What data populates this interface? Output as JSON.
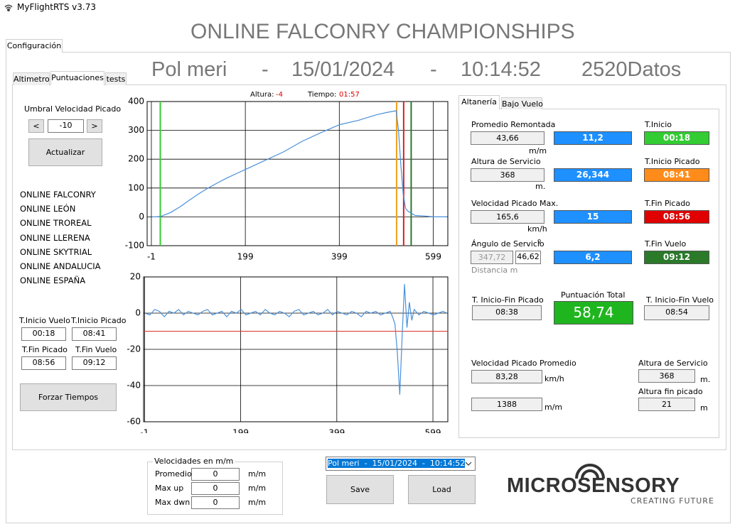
{
  "window": {
    "title": "MyFlightRTS v3.73"
  },
  "main_tab": "Configuración",
  "header": {
    "title": "ONLINE FALCONRY CHAMPIONSHIPS",
    "name": "Pol meri",
    "separator": "-",
    "date": "15/01/2024",
    "time": "10:14:52",
    "count": "2520Datos"
  },
  "sub_tabs": [
    "Altimetro",
    "Puntuaciones",
    "tests"
  ],
  "threshold": {
    "label": "Umbral Velocidad Picado",
    "prev": "<",
    "value": "-10",
    "next": ">",
    "update": "Actualizar"
  },
  "teams": [
    "ONLINE FALCONRY",
    "ONLINE LEÓN",
    "ONLINE TROREAL",
    "ONLINE LLERENA",
    "ONLINE SKYTRIAL",
    "ONLINE ANDALUCIA",
    "ONLINE ESPAÑA"
  ],
  "times": {
    "fields": [
      {
        "label": "T.Inicio Vuelo",
        "value": "00:18"
      },
      {
        "label": "T.Inicio Picado",
        "value": "08:41"
      },
      {
        "label": "T.Fin Picado",
        "value": "08:56"
      },
      {
        "label": "T.Fin Vuelo",
        "value": "09:12"
      }
    ],
    "button": "Forzar Tiempos"
  },
  "chart_status": {
    "altura_label": "Altura:",
    "altura": "-4",
    "tiempo_label": "Tiempo:",
    "tiempo": "01:57"
  },
  "chart_data": [
    {
      "type": "line",
      "x": [
        0,
        10,
        20,
        40,
        60,
        80,
        100,
        120,
        140,
        160,
        180,
        200,
        240,
        280,
        320,
        360,
        400,
        440,
        480,
        500,
        520,
        525,
        530,
        535,
        540,
        545,
        550,
        560,
        580,
        600,
        620,
        628
      ],
      "values": [
        0,
        0,
        2,
        15,
        35,
        58,
        80,
        100,
        118,
        135,
        150,
        165,
        195,
        225,
        262,
        292,
        320,
        335,
        355,
        362,
        368,
        300,
        180,
        80,
        30,
        20,
        15,
        5,
        3,
        0,
        0,
        0
      ],
      "color": "#4a90d9",
      "xlim": [
        -10,
        630
      ],
      "xticks": [
        -1,
        199,
        399,
        599
      ],
      "ylim": [
        -100,
        400
      ],
      "yticks": [
        -100,
        0,
        100,
        200,
        300,
        400
      ],
      "grid": true,
      "vlines": [
        {
          "value": 18,
          "color": "#33cc33"
        },
        {
          "value": 521,
          "color": "#f0a020"
        },
        {
          "value": 536,
          "color": "#dd2020"
        },
        {
          "value": 552,
          "color": "#2a7a2a"
        }
      ]
    },
    {
      "type": "line",
      "x": [
        0,
        10,
        20,
        30,
        40,
        50,
        60,
        70,
        80,
        90,
        100,
        110,
        120,
        130,
        140,
        150,
        160,
        170,
        180,
        190,
        200,
        210,
        220,
        230,
        240,
        250,
        260,
        270,
        280,
        290,
        300,
        310,
        320,
        330,
        340,
        350,
        360,
        370,
        380,
        390,
        400,
        410,
        420,
        430,
        440,
        450,
        460,
        470,
        480,
        490,
        500,
        510,
        515,
        520,
        525,
        530,
        535,
        540,
        545,
        550,
        555,
        560,
        570,
        580,
        590,
        600,
        610,
        620,
        628
      ],
      "values": [
        0,
        -1,
        2,
        1,
        -2,
        1,
        0,
        2,
        -1,
        1,
        0,
        -1,
        1,
        2,
        -1,
        0,
        1,
        -2,
        1,
        0,
        2,
        -1,
        0,
        1,
        -1,
        2,
        0,
        -1,
        1,
        0,
        -2,
        1,
        2,
        -1,
        0,
        1,
        -1,
        0,
        2,
        -1,
        1,
        0,
        -1,
        1,
        0,
        -2,
        1,
        0,
        1,
        -1,
        0,
        1,
        -2,
        -6,
        -22,
        -45,
        -12,
        16,
        -8,
        6,
        -4,
        2,
        -1,
        1,
        0,
        -1,
        0,
        1,
        0
      ],
      "color": "#4a90d9",
      "xlim": [
        -3,
        630
      ],
      "xticks": [
        -1,
        199,
        399,
        599
      ],
      "ylim": [
        -60,
        20
      ],
      "yticks": [
        -60,
        -40,
        -20,
        0,
        20
      ],
      "grid": true,
      "hlines": [
        {
          "value": -10,
          "color": "#e03030"
        }
      ]
    }
  ],
  "results": {
    "tabs": [
      "Altanería",
      "Bajo Vuelo"
    ],
    "rows": [
      {
        "label": "Promedio Remontada",
        "value": "43,66",
        "unit": "m/m",
        "score": "11,2",
        "time_label": "T.Inicio",
        "time": "00:18",
        "color": "#33cc33"
      },
      {
        "label": "Altura de Servicio",
        "value": "368",
        "unit": "m.",
        "score": "26,344",
        "time_label": "T.Inicio Picado",
        "time": "08:41",
        "color": "#ff8c1a"
      },
      {
        "label": "Velocidad Picado Max.",
        "value": "165,6",
        "unit": "km/h",
        "score": "15",
        "time_label": "T.Fin Picado",
        "time": "08:56",
        "color": "#e00000"
      },
      {
        "label": "Ángulo de Servicio",
        "symbol": "º",
        "value": "347,72",
        "value2": "46,62",
        "unit": "Distancia m",
        "score": "6,2",
        "time_label": "T.Fin Vuelo",
        "time": "09:12",
        "color": "#2a7a2a"
      }
    ],
    "score_color": "#1e90ff",
    "totals": {
      "picado_label": "T. Inicio-Fin Picado",
      "picado": "08:38",
      "score_label": "Puntuación Total",
      "score": "58,74",
      "score_color": "#1fb51f",
      "vuelo_label": "T. Inicio-Fin Vuelo",
      "vuelo": "08:54"
    },
    "extra": {
      "avg_label": "Velocidad Picado Promedio",
      "avg": "83,28",
      "avg_unit": "km/h",
      "rate": "1388",
      "rate_unit": "m/m",
      "alt_label": "Altura de Servicio",
      "alt": "368",
      "alt_unit": "m.",
      "end_label": "Altura fin picado",
      "end": "21",
      "end_unit": "m"
    }
  },
  "speeds": {
    "title": "Velocidades en m/m",
    "rows": [
      {
        "label": "Promedio",
        "value": "0",
        "unit": "m/m"
      },
      {
        "label": "Max up",
        "value": "0",
        "unit": "m/m"
      },
      {
        "label": "Max dwn",
        "value": "0",
        "unit": "m/m"
      }
    ]
  },
  "session_select": "Pol meri  -  15/01/2024  -  10:14:52",
  "buttons": {
    "save": "Save",
    "load": "Load"
  },
  "logo": {
    "name": "MICROSENSORY",
    "tagline": "CREATING FUTURE"
  }
}
